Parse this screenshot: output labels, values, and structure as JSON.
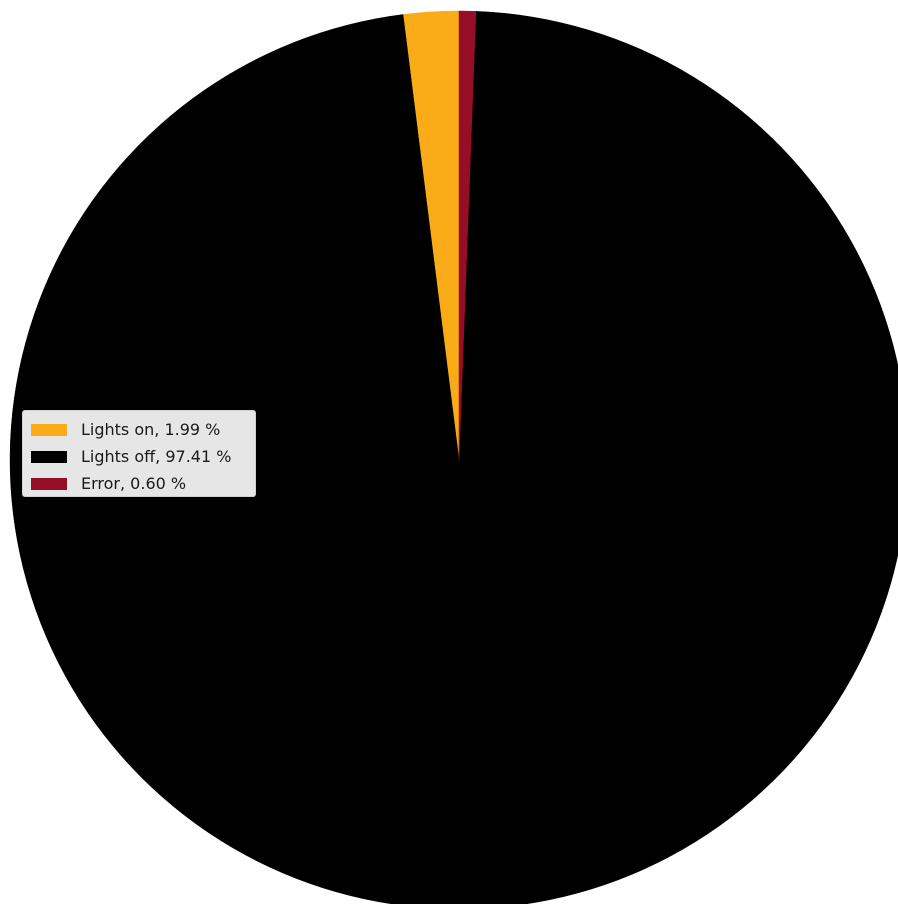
{
  "chart_data": {
    "type": "pie",
    "title": "",
    "legend_position": "center-left",
    "slices": [
      {
        "label": "Lights on, 1.99 %",
        "value": 1.99,
        "color": "#f9ab18"
      },
      {
        "label": "Lights off, 97.41 %",
        "value": 97.41,
        "color": "#000000"
      },
      {
        "label": "Error, 0.60 %",
        "value": 0.6,
        "color": "#960e26"
      }
    ]
  }
}
